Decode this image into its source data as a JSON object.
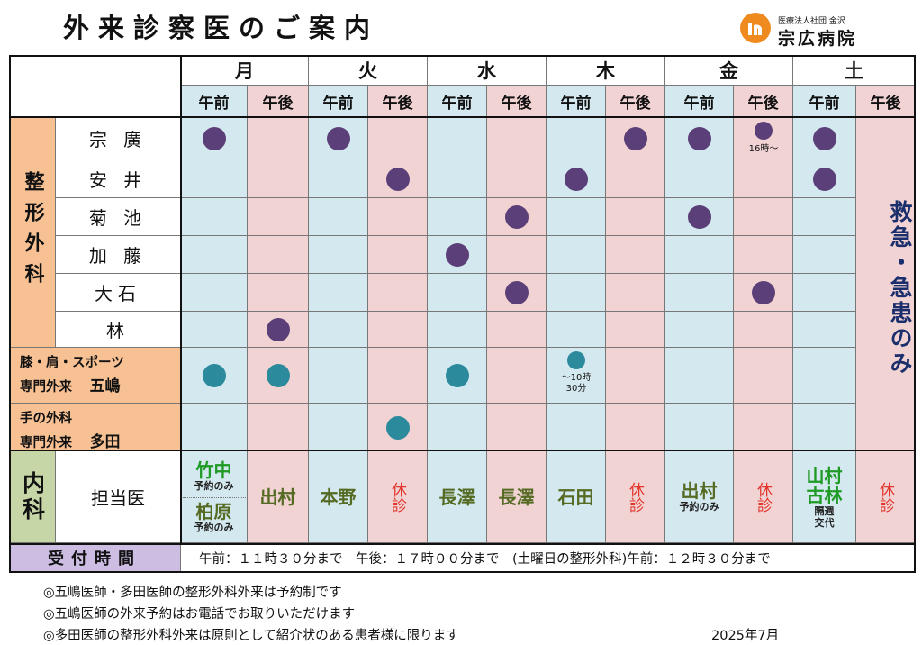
{
  "title": "外来診察医のご案内",
  "hospital": {
    "org": "医療法人社団 金沢",
    "name": "宗広病院"
  },
  "days": [
    "月",
    "火",
    "水",
    "木",
    "金",
    "土"
  ],
  "am": "午前",
  "pm": "午後",
  "orthopedics_label": "整形外科",
  "doctors": [
    "宗 廣",
    "安 井",
    "菊 池",
    "加 藤",
    "大石",
    "林"
  ],
  "specialty1": {
    "line1": "膝・肩・スポーツ",
    "line2": "専門外来",
    "name": "五嶋"
  },
  "specialty2": {
    "line1": "手の外科",
    "line2": "専門外来",
    "name": "多田"
  },
  "schedule_notes": {
    "munehiro_sat_pm_fri": "16時～",
    "goshima_thu": "～10時\n30分"
  },
  "emergency": "救急・急患のみ",
  "internal": {
    "label": "内科",
    "tanto": "担当医",
    "mon_am": {
      "a": "竹中",
      "a_note": "予約のみ",
      "b": "柏原",
      "b_note": "予約のみ"
    },
    "mon_pm": "出村",
    "tue_am": "本野",
    "tue_pm": "休診",
    "wed_am": "長澤",
    "wed_pm": "長澤",
    "thu_am": "石田",
    "thu_pm": "休診",
    "fri_am": {
      "name": "出村",
      "note": "予約のみ"
    },
    "fri_pm": "休診",
    "sat_am": {
      "a": "山村",
      "b": "古林",
      "note1": "隔週",
      "note2": "交代"
    },
    "sat_pm": "休診"
  },
  "reception": {
    "label": "受付時間",
    "hours": "午前：１１時３０分まで　午後：１７時００分まで　(土曜日の整形外科)午前：１２時３０分まで"
  },
  "footnotes": [
    "◎五嶋医師・多田医師の整形外科外来は予約制です",
    "◎五嶋医師の外来予約はお電話でお取りいただけます",
    "◎多田医師の整形外科外来は原則として紹介状のある患者様に限ります"
  ],
  "date": "2025年7月",
  "colors": {
    "am": "#d4e8ef",
    "pm": "#f2d3d4",
    "orthopedics": "#f8c194",
    "internal": "#c6d6a6",
    "reception": "#cdbde2",
    "dot_purple": "#5b3f79",
    "dot_teal": "#2b8a9b",
    "closed": "#e0362c"
  },
  "orthopedics_schedule": {
    "munehiro": [
      "mon-am",
      "tue-am",
      "thu-pm",
      "fri-am",
      "fri-pm",
      "sat-am"
    ],
    "yasui": [
      "tue-pm",
      "thu-am",
      "sat-am"
    ],
    "kikuchi": [
      "wed-pm",
      "fri-am"
    ],
    "kato": [
      "wed-am"
    ],
    "oishi": [
      "wed-pm",
      "fri-pm"
    ],
    "hayashi": [
      "mon-pm"
    ],
    "goshima": [
      "mon-am",
      "mon-pm",
      "wed-am",
      "thu-am"
    ],
    "tada": [
      "tue-pm"
    ]
  }
}
